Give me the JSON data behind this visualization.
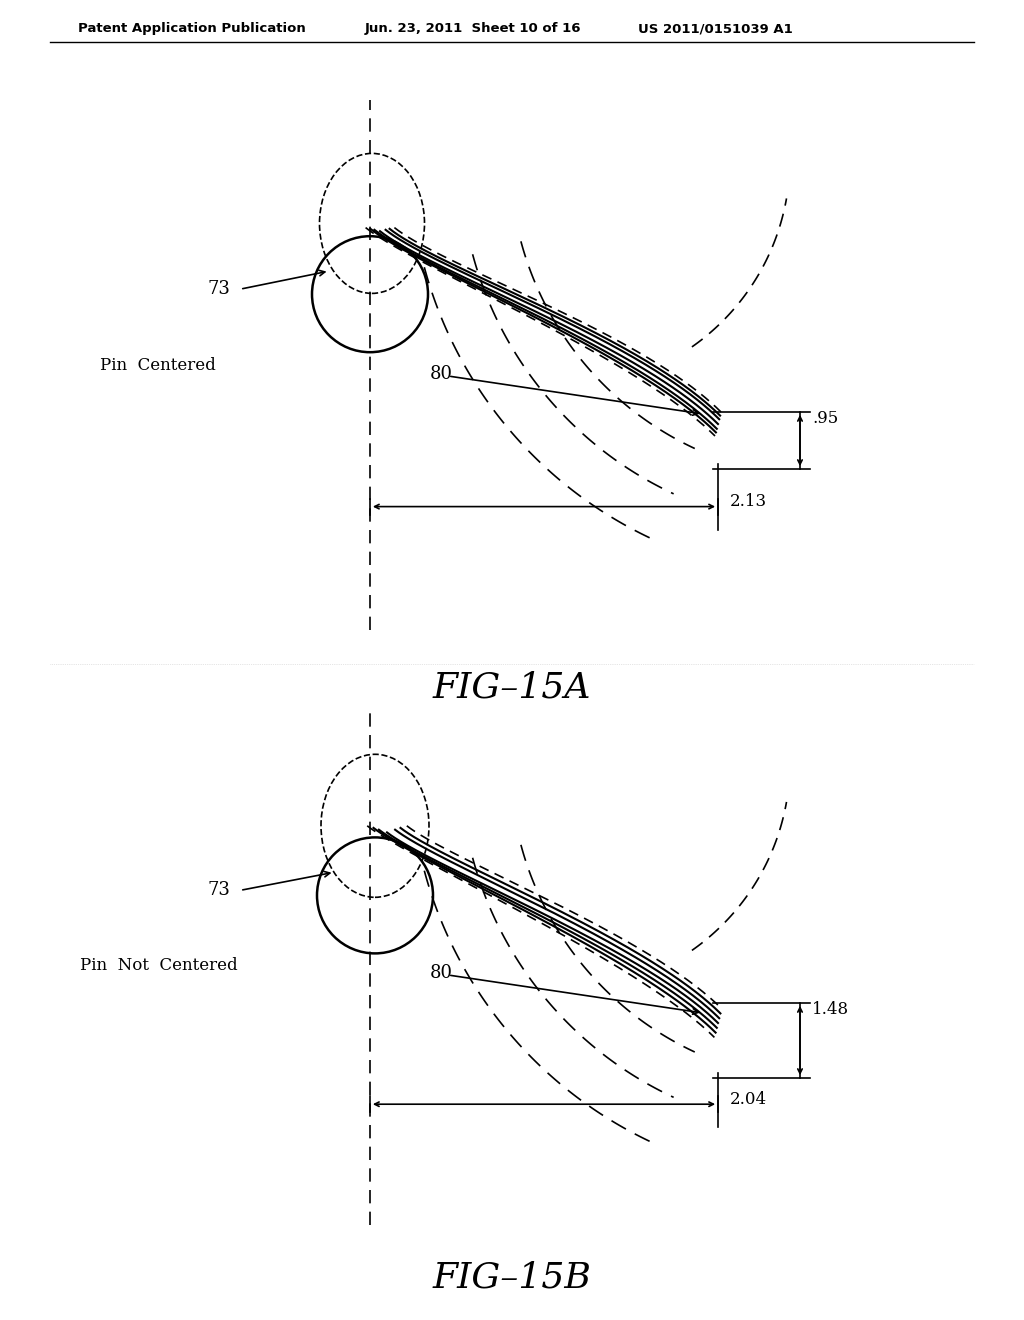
{
  "bg_color": "#ffffff",
  "header_text": "Patent Application Publication",
  "header_date": "Jun. 23, 2011  Sheet 10 of 16",
  "header_patent": "US 2011/0151039 A1",
  "fig_label_A": "FIG–15A",
  "fig_label_B": "FIG–15B",
  "label_pin_centered": "Pin  Centered",
  "label_pin_not_centered": "Pin  Not  Centered",
  "label_73": "73",
  "label_80_A": "80",
  "label_80_B": "80",
  "dim_095": ".95",
  "dim_213": "2.13",
  "dim_148": "1.48",
  "dim_204": "2.04",
  "line_color": "#000000"
}
